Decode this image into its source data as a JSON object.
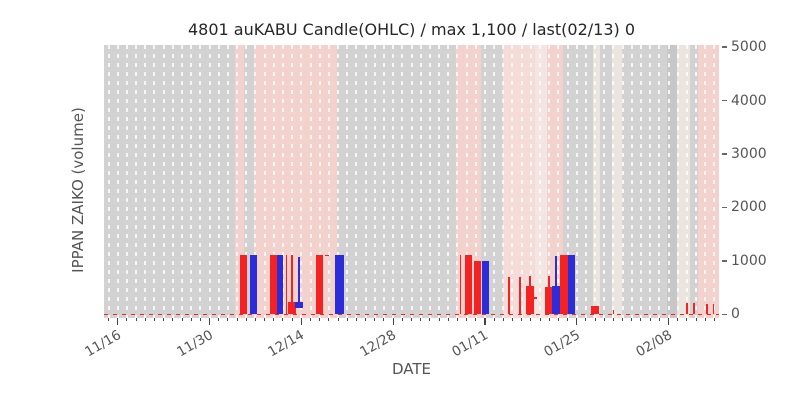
{
  "chart_data": {
    "type": "candlestick",
    "title": "4801 auKABU Candle(OHLC) / max 1,100 / last(02/13) 0",
    "xlabel": "DATE",
    "ylabel": "IPPAN ZAIKO (volume)",
    "ylim": [
      -70,
      5040
    ],
    "yticks": [
      0,
      1000,
      2000,
      3000,
      4000,
      5000
    ],
    "n_days": 67,
    "grid": "vertical-dashed",
    "x_major_ticks": [
      {
        "day": 1,
        "label": "11/16"
      },
      {
        "day": 11,
        "label": "11/30"
      },
      {
        "day": 21,
        "label": "12/14"
      },
      {
        "day": 31,
        "label": "12/28"
      },
      {
        "day": 41,
        "label": "01/11"
      },
      {
        "day": 51,
        "label": "01/25"
      },
      {
        "day": 61,
        "label": "02/08"
      }
    ],
    "candles": [
      {
        "day": 14.7,
        "color": "red",
        "body": [
          0,
          1100
        ]
      },
      {
        "day": 15.8,
        "color": "blue",
        "body": [
          0,
          1100
        ]
      },
      {
        "day": 18.0,
        "color": "red",
        "body": [
          0,
          1100
        ]
      },
      {
        "day": 18.7,
        "color": "blue",
        "body": [
          0,
          1100
        ],
        "width": 6
      },
      {
        "day": 19.4,
        "color": "red",
        "wick": [
          0,
          1100
        ]
      },
      {
        "day": 20.0,
        "color": "red",
        "body": [
          0,
          225
        ],
        "wick": [
          0,
          1100
        ]
      },
      {
        "day": 20.75,
        "color": "blue",
        "body": [
          120,
          230
        ],
        "wick": [
          230,
          1080
        ]
      },
      {
        "day": 22.95,
        "color": "red",
        "body": [
          0,
          1100
        ]
      },
      {
        "day": 25.2,
        "color": "blue",
        "body": [
          0,
          1100
        ],
        "width": 9
      },
      {
        "day": 38.35,
        "color": "red",
        "wick": [
          0,
          1100
        ]
      },
      {
        "day": 39.2,
        "color": "red",
        "body": [
          0,
          1100
        ]
      },
      {
        "day": 40.2,
        "color": "red",
        "body": [
          0,
          1005
        ]
      },
      {
        "day": 41.05,
        "color": "blue",
        "body": [
          0,
          990
        ]
      },
      {
        "day": 43.65,
        "color": "red",
        "wick": [
          0,
          705
        ]
      },
      {
        "day": 44.8,
        "color": "red",
        "wick": [
          0,
          705
        ]
      },
      {
        "day": 45.9,
        "color": "red",
        "body": [
          0,
          525
        ],
        "wick": [
          0,
          710
        ]
      },
      {
        "day": 48.0,
        "color": "red",
        "body": [
          0,
          505
        ],
        "wick": [
          0,
          710
        ]
      },
      {
        "day": 48.75,
        "color": "blue",
        "body": [
          0,
          520
        ],
        "wick": [
          520,
          1085
        ]
      },
      {
        "day": 49.6,
        "color": "red",
        "body": [
          0,
          1100
        ]
      },
      {
        "day": 50.45,
        "color": "blue",
        "body": [
          0,
          1100
        ]
      },
      {
        "day": 53.0,
        "color": "red",
        "body": [
          0,
          150
        ]
      },
      {
        "day": 55.0,
        "color": "red",
        "wick": [
          0,
          80
        ]
      },
      {
        "day": 63.0,
        "color": "red",
        "wick": [
          0,
          215
        ]
      },
      {
        "day": 63.8,
        "color": "red",
        "wick": [
          0,
          215
        ]
      },
      {
        "day": 65.2,
        "color": "red",
        "wick": [
          0,
          190
        ]
      },
      {
        "day": 65.9,
        "color": "red",
        "wick": [
          0,
          190
        ]
      }
    ],
    "close_line_segments": [
      {
        "from_day": 24.05,
        "to_day": 25.0,
        "value": 1100
      },
      {
        "from_day": 46.75,
        "to_day": 47.35,
        "value": 300
      }
    ],
    "zero_dash_line": {
      "value": 0
    },
    "background_bands": [
      {
        "from_day": 14.27,
        "to_day": 15.25,
        "color": "pink"
      },
      {
        "from_day": 16.34,
        "to_day": 25.38,
        "color": "pink"
      },
      {
        "from_day": 38.3,
        "to_day": 41.05,
        "color": "pink"
      },
      {
        "from_day": 43.47,
        "to_day": 46.95,
        "color": "pink_light"
      },
      {
        "from_day": 46.95,
        "to_day": 48.26,
        "color": "pink_pale"
      },
      {
        "from_day": 48.26,
        "to_day": 50.0,
        "color": "pink"
      },
      {
        "from_day": 53.27,
        "to_day": 54.03,
        "color": "cream"
      },
      {
        "from_day": 55.34,
        "to_day": 56.43,
        "color": "cream"
      },
      {
        "from_day": 61.33,
        "to_day": 62.42,
        "color": "gray_dark"
      },
      {
        "from_day": 62.42,
        "to_day": 63.83,
        "color": "cream"
      },
      {
        "from_day": 64.71,
        "to_day": 67.0,
        "color": "pink"
      }
    ],
    "colors": {
      "red": "#f42222",
      "blue": "#2c2cd8",
      "band_gray": "#d2d2d2",
      "pink": "#f3d2ce",
      "pink_light": "#f5dcd8",
      "pink_pale": "#f3e5e1",
      "cream": "#eae6df",
      "gray_dark": "#c7c7c7"
    }
  }
}
